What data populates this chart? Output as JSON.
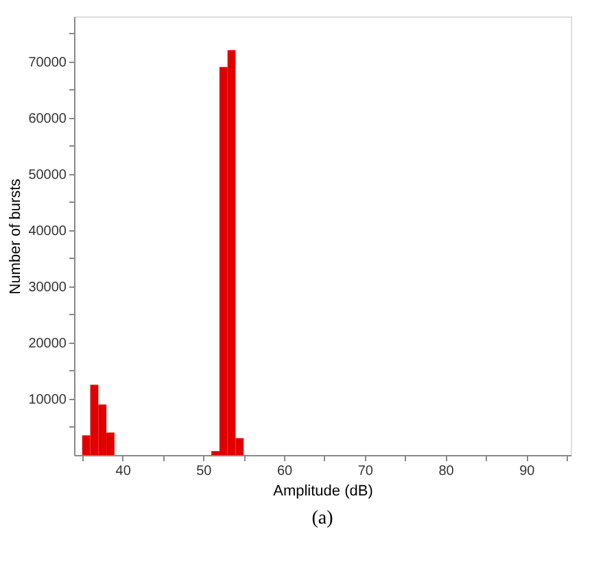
{
  "chart_data": {
    "type": "histogram",
    "xlabel": "Amplitude (dB)",
    "ylabel": "Number of bursts",
    "bins": [
      35,
      36,
      37,
      38,
      39,
      40,
      41,
      42,
      43,
      44,
      45,
      46,
      47,
      48,
      49,
      50,
      51,
      52,
      53,
      54,
      55
    ],
    "values": [
      3500,
      12500,
      9000,
      4000,
      0,
      0,
      0,
      0,
      0,
      0,
      0,
      0,
      0,
      0,
      0,
      0,
      700,
      69000,
      72000,
      3000
    ],
    "color": "#e00000",
    "xlim": [
      34,
      95.5
    ],
    "xticks": [
      {
        "value": 35,
        "label": null
      },
      40,
      {
        "value": 45,
        "label": null
      },
      50,
      {
        "value": 55,
        "label": null
      },
      60,
      {
        "value": 65,
        "label": null
      },
      70,
      {
        "value": 75,
        "label": null
      },
      80,
      {
        "value": 85,
        "label": null
      },
      90,
      {
        "value": 95,
        "label": null
      }
    ],
    "ylim": [
      0,
      78000
    ],
    "yticks": [
      {
        "value": 5000,
        "label": null
      },
      10000,
      {
        "value": 15000,
        "label": null
      },
      20000,
      {
        "value": 25000,
        "label": null
      },
      30000,
      {
        "value": 35000,
        "label": null
      },
      40000,
      {
        "value": 45000,
        "label": null
      },
      50000,
      {
        "value": 55000,
        "label": null
      },
      60000,
      {
        "value": 65000,
        "label": null
      },
      70000,
      {
        "value": 75000,
        "label": null
      }
    ],
    "grid": false,
    "annotations": [
      "(a)"
    ]
  }
}
